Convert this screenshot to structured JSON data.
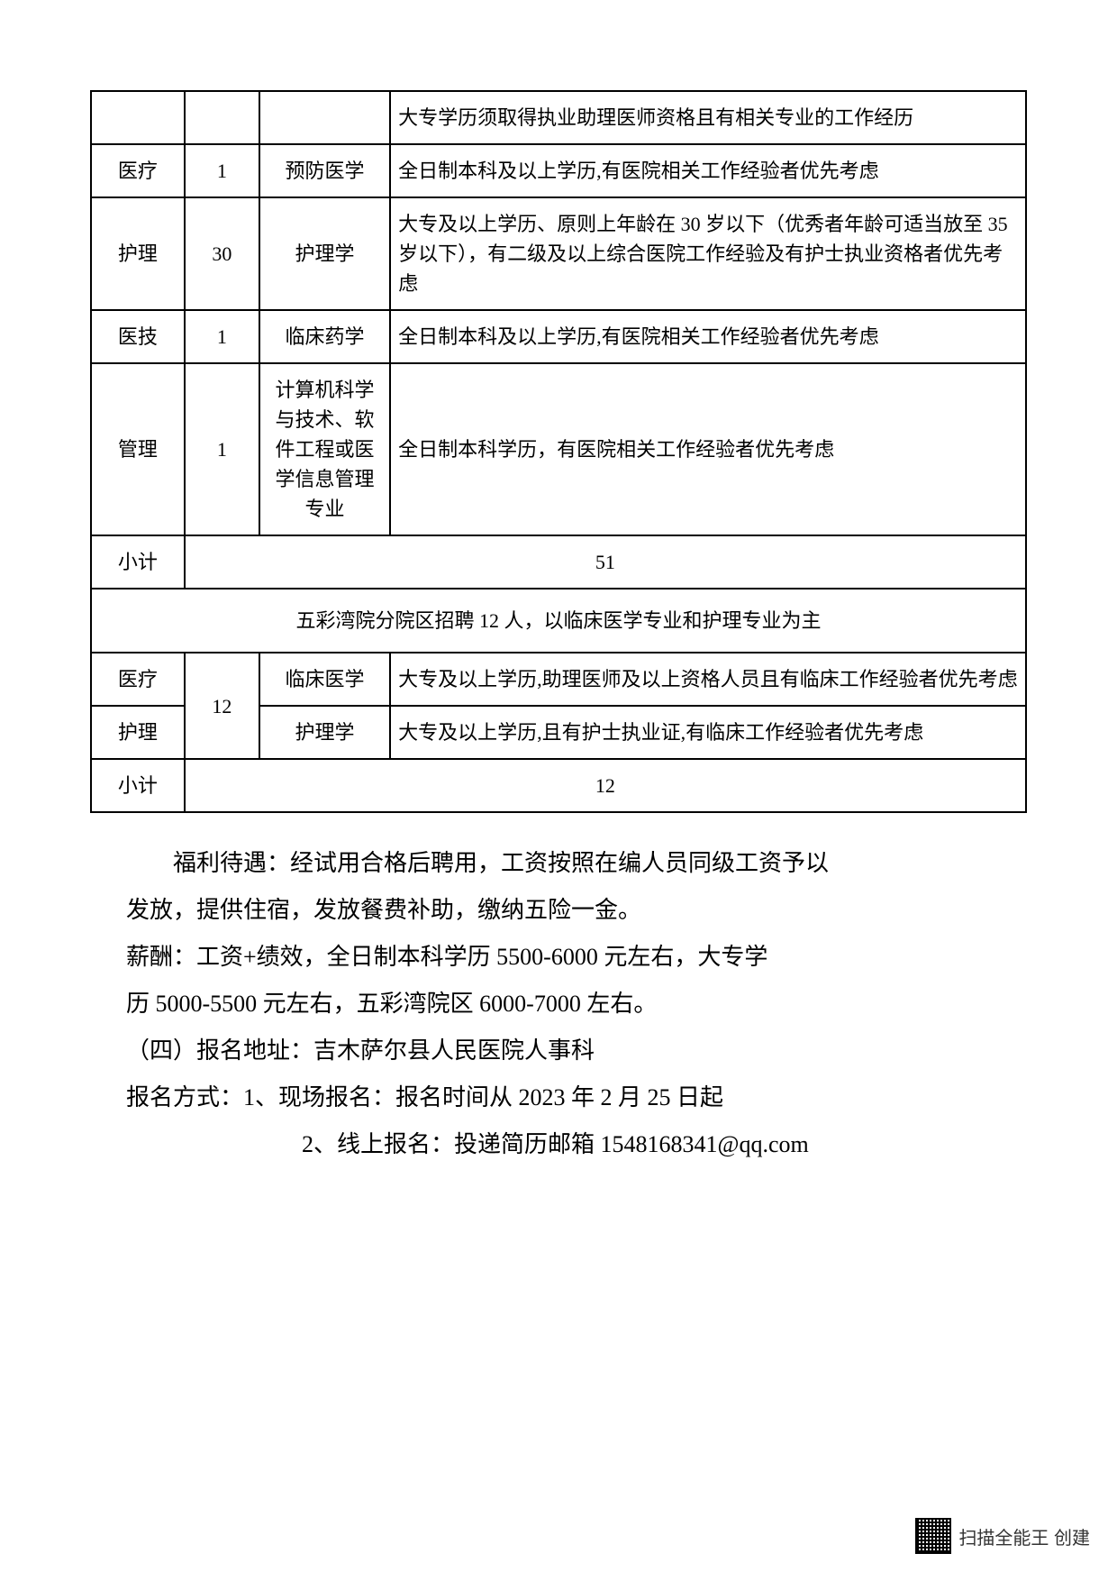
{
  "table": {
    "rows": [
      {
        "col1": "",
        "col2": "",
        "col3": "",
        "col4": "大专学历须取得执业助理医师资格且有相关专业的工作经历"
      },
      {
        "col1": "医疗",
        "col2": "1",
        "col3": "预防医学",
        "col4": "全日制本科及以上学历,有医院相关工作经验者优先考虑"
      },
      {
        "col1": "护理",
        "col2": "30",
        "col3": "护理学",
        "col4": "大专及以上学历、原则上年龄在 30 岁以下（优秀者年龄可适当放至 35 岁以下），有二级及以上综合医院工作经验及有护士执业资格者优先考虑"
      },
      {
        "col1": "医技",
        "col2": "1",
        "col3": "临床药学",
        "col4": "全日制本科及以上学历,有医院相关工作经验者优先考虑"
      },
      {
        "col1": "管理",
        "col2": "1",
        "col3": "计算机科学与技术、软件工程或医学信息管理专业",
        "col4": "全日制本科学历，有医院相关工作经验者优先考虑"
      }
    ],
    "subtotal1": {
      "label": "小计",
      "value": "51"
    },
    "sectionHeader": "五彩湾院分院区招聘 12 人，以临床医学专业和护理专业为主",
    "rows2": [
      {
        "col1": "医疗",
        "col3": "临床医学",
        "col4": "大专及以上学历,助理医师及以上资格人员且有临床工作经验者优先考虑"
      },
      {
        "col1": "护理",
        "col3": "护理学",
        "col4": "大专及以上学历,且有护士执业证,有临床工作经验者优先考虑"
      }
    ],
    "merged_col2": "12",
    "subtotal2": {
      "label": "小计",
      "value": "12"
    }
  },
  "body": {
    "p1": "福利待遇：经试用合格后聘用，工资按照在编人员同级工资予以",
    "p2": "发放，提供住宿，发放餐费补助，缴纳五险一金。",
    "p3": "薪酬：工资+绩效，全日制本科学历 5500-6000 元左右，大专学",
    "p4": "历 5000-5500 元左右，五彩湾院区 6000-7000 左右。",
    "p5": "（四）报名地址：吉木萨尔县人民医院人事科",
    "p6": "报名方式：1、现场报名：报名时间从 2023 年 2 月 25 日起",
    "p7": "2、线上报名：投递简历邮箱 1548168341@qq.com"
  },
  "footer": {
    "text": "扫描全能王 创建"
  }
}
